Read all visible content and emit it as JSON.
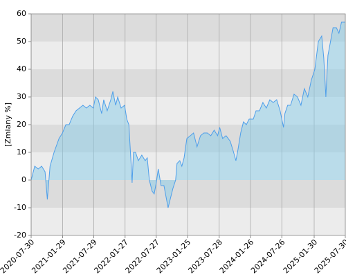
{
  "chart_data": {
    "type": "area",
    "ylabel": "[Zmiany %]",
    "x": [
      "2020-07-30",
      "2020-08-20",
      "2020-09-09",
      "2020-09-29",
      "2020-10-19",
      "2020-11-01",
      "2020-11-17",
      "2020-12-10",
      "2021-01-08",
      "2021-01-28",
      "2021-02-17",
      "2021-03-08",
      "2021-03-28",
      "2021-04-17",
      "2021-05-07",
      "2021-05-27",
      "2021-06-16",
      "2021-07-06",
      "2021-07-26",
      "2021-08-08",
      "2021-08-24",
      "2021-09-13",
      "2021-09-25",
      "2021-10-15",
      "2021-11-05",
      "2021-11-17",
      "2021-12-03",
      "2021-12-15",
      "2022-01-04",
      "2022-01-24",
      "2022-02-06",
      "2022-02-18",
      "2022-03-01",
      "2022-03-09",
      "2022-03-17",
      "2022-03-29",
      "2022-04-14",
      "2022-05-04",
      "2022-05-24",
      "2022-06-05",
      "2022-06-17",
      "2022-07-03",
      "2022-07-15",
      "2022-07-27",
      "2022-08-08",
      "2022-08-24",
      "2022-09-10",
      "2022-09-22",
      "2022-10-04",
      "2022-10-16",
      "2022-11-01",
      "2022-11-17",
      "2022-11-25",
      "2022-12-11",
      "2022-12-23",
      "2023-01-05",
      "2023-01-21",
      "2023-02-10",
      "2023-03-01",
      "2023-03-21",
      "2023-04-10",
      "2023-04-30",
      "2023-05-20",
      "2023-06-09",
      "2023-06-29",
      "2023-07-19",
      "2023-07-31",
      "2023-08-17",
      "2023-09-06",
      "2023-09-30",
      "2023-10-20",
      "2023-11-02",
      "2023-11-14",
      "2023-11-30",
      "2023-12-16",
      "2024-01-02",
      "2024-01-18",
      "2024-02-11",
      "2024-02-27",
      "2024-03-18",
      "2024-04-07",
      "2024-04-27",
      "2024-05-17",
      "2024-06-06",
      "2024-06-26",
      "2024-07-16",
      "2024-08-05",
      "2024-08-13",
      "2024-08-29",
      "2024-09-15",
      "2024-10-05",
      "2024-10-25",
      "2024-11-14",
      "2024-12-04",
      "2024-12-24",
      "2025-01-13",
      "2025-02-03",
      "2025-02-23",
      "2025-03-15",
      "2025-03-27",
      "2025-04-08",
      "2025-04-20",
      "2025-05-05",
      "2025-05-20",
      "2025-06-08",
      "2025-06-23",
      "2025-07-08",
      "2025-07-30"
    ],
    "values": [
      0,
      5,
      4,
      5,
      3,
      -7,
      5,
      10,
      15,
      17,
      20,
      20,
      23,
      25,
      26,
      27,
      26,
      27,
      26,
      30,
      29,
      24,
      29,
      25,
      29,
      32,
      27,
      30,
      26,
      27,
      22,
      20,
      8,
      -1,
      10,
      10,
      7,
      9,
      7,
      8,
      0,
      -4,
      -5,
      -1,
      4,
      -2,
      -2,
      -6,
      -10,
      -7,
      -3,
      0,
      6,
      7,
      5,
      8,
      15,
      16,
      17,
      12,
      16,
      17,
      17,
      16,
      18,
      16,
      19,
      15,
      16,
      14,
      10,
      7,
      11,
      17,
      21,
      20,
      22,
      22,
      25,
      25,
      28,
      26,
      29,
      28,
      29,
      25,
      19,
      24,
      27,
      27,
      31,
      30,
      27,
      33,
      30,
      36,
      40,
      50,
      52,
      44,
      30,
      45,
      50,
      55,
      55,
      53,
      57,
      57
    ],
    "line_color": "#4d9eea",
    "fill_color": "#87cbe8",
    "xlim": [
      "2020-07-30",
      "2025-07-30"
    ],
    "xticks": [
      "2020-07-30",
      "2021-01-29",
      "2021-07-29",
      "2022-01-27",
      "2022-07-27",
      "2023-01-25",
      "2023-07-28",
      "2024-01-26",
      "2024-07-26",
      "2025-01-30",
      "2025-07-30"
    ],
    "ylim": [
      -20,
      60
    ],
    "yticks": [
      -20,
      -10,
      0,
      10,
      20,
      30,
      40,
      50,
      60
    ],
    "band_colors": [
      "#ececec",
      "#dcdcdc"
    ],
    "grid": true
  }
}
